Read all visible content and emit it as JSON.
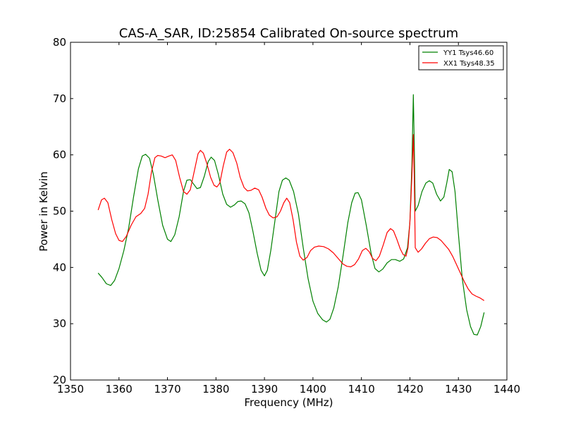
{
  "chart_data": {
    "type": "line",
    "title": "CAS-A_SAR, ID:25854 Calibrated On-source spectrum",
    "xlabel": "Frequency (MHz)",
    "ylabel": "Power in Kelvin",
    "xlim": [
      1350,
      1440
    ],
    "ylim": [
      20,
      80
    ],
    "xticks": [
      1350,
      1360,
      1370,
      1380,
      1390,
      1400,
      1410,
      1420,
      1430,
      1440
    ],
    "yticks": [
      20,
      30,
      40,
      50,
      60,
      70,
      80
    ],
    "grid": false,
    "legend_position": "top-right",
    "series": [
      {
        "name": "YY1 Tsys46.60",
        "color": "#008000",
        "points": [
          [
            1355.7,
            39.0
          ],
          [
            1356.5,
            38.2
          ],
          [
            1357.4,
            37.1
          ],
          [
            1358.3,
            36.8
          ],
          [
            1359.1,
            37.7
          ],
          [
            1360.0,
            39.8
          ],
          [
            1361.0,
            43.0
          ],
          [
            1362.0,
            47.0
          ],
          [
            1363.0,
            52.5
          ],
          [
            1364.0,
            57.5
          ],
          [
            1364.8,
            59.8
          ],
          [
            1365.5,
            60.1
          ],
          [
            1366.3,
            59.4
          ],
          [
            1367.1,
            56.5
          ],
          [
            1368.0,
            52.0
          ],
          [
            1369.0,
            47.5
          ],
          [
            1370.0,
            45.0
          ],
          [
            1370.7,
            44.6
          ],
          [
            1371.5,
            45.8
          ],
          [
            1372.4,
            49.0
          ],
          [
            1373.3,
            53.5
          ],
          [
            1374.0,
            55.5
          ],
          [
            1374.7,
            55.6
          ],
          [
            1375.4,
            54.8
          ],
          [
            1376.1,
            54.0
          ],
          [
            1376.8,
            54.2
          ],
          [
            1377.6,
            56.2
          ],
          [
            1378.4,
            58.8
          ],
          [
            1379.0,
            59.6
          ],
          [
            1379.7,
            59.0
          ],
          [
            1380.5,
            56.5
          ],
          [
            1381.4,
            53.0
          ],
          [
            1382.2,
            51.2
          ],
          [
            1383.0,
            50.7
          ],
          [
            1383.8,
            51.1
          ],
          [
            1384.5,
            51.7
          ],
          [
            1385.2,
            51.8
          ],
          [
            1386.0,
            51.3
          ],
          [
            1386.8,
            49.7
          ],
          [
            1387.6,
            46.5
          ],
          [
            1388.5,
            42.5
          ],
          [
            1389.3,
            39.5
          ],
          [
            1390.0,
            38.5
          ],
          [
            1390.6,
            39.5
          ],
          [
            1391.3,
            43.0
          ],
          [
            1392.2,
            48.5
          ],
          [
            1393.0,
            53.5
          ],
          [
            1393.7,
            55.5
          ],
          [
            1394.4,
            55.9
          ],
          [
            1395.1,
            55.5
          ],
          [
            1396.0,
            53.5
          ],
          [
            1397.0,
            49.5
          ],
          [
            1398.0,
            43.5
          ],
          [
            1399.0,
            38.0
          ],
          [
            1400.0,
            34.0
          ],
          [
            1401.0,
            31.8
          ],
          [
            1402.0,
            30.7
          ],
          [
            1402.8,
            30.3
          ],
          [
            1403.5,
            30.8
          ],
          [
            1404.3,
            32.8
          ],
          [
            1405.2,
            36.5
          ],
          [
            1406.2,
            42.0
          ],
          [
            1407.2,
            48.0
          ],
          [
            1408.0,
            51.5
          ],
          [
            1408.7,
            53.2
          ],
          [
            1409.3,
            53.3
          ],
          [
            1410.0,
            52.0
          ],
          [
            1411.0,
            47.5
          ],
          [
            1412.0,
            42.5
          ],
          [
            1412.8,
            39.8
          ],
          [
            1413.6,
            39.2
          ],
          [
            1414.4,
            39.7
          ],
          [
            1415.3,
            40.8
          ],
          [
            1416.2,
            41.4
          ],
          [
            1417.0,
            41.4
          ],
          [
            1417.9,
            41.1
          ],
          [
            1418.7,
            41.5
          ],
          [
            1419.5,
            43.5
          ],
          [
            1420.0,
            48.0
          ],
          [
            1420.4,
            58.0
          ],
          [
            1420.7,
            70.7
          ],
          [
            1420.9,
            62.0
          ],
          [
            1421.1,
            50.0
          ],
          [
            1421.7,
            51.0
          ],
          [
            1422.5,
            53.5
          ],
          [
            1423.3,
            55.0
          ],
          [
            1424.0,
            55.4
          ],
          [
            1424.7,
            55.0
          ],
          [
            1425.5,
            53.0
          ],
          [
            1426.3,
            51.8
          ],
          [
            1427.0,
            52.5
          ],
          [
            1427.6,
            55.0
          ],
          [
            1428.1,
            57.4
          ],
          [
            1428.7,
            57.0
          ],
          [
            1429.3,
            53.5
          ],
          [
            1430.0,
            46.0
          ],
          [
            1430.8,
            38.0
          ],
          [
            1431.7,
            32.5
          ],
          [
            1432.5,
            29.5
          ],
          [
            1433.2,
            28.1
          ],
          [
            1433.9,
            28.0
          ],
          [
            1434.6,
            29.5
          ],
          [
            1435.3,
            32.0
          ]
        ]
      },
      {
        "name": "XX1 Tsys48.35",
        "color": "#ff0000",
        "points": [
          [
            1355.7,
            50.2
          ],
          [
            1356.4,
            52.0
          ],
          [
            1357.0,
            52.3
          ],
          [
            1357.7,
            51.5
          ],
          [
            1358.5,
            48.5
          ],
          [
            1359.3,
            46.0
          ],
          [
            1360.0,
            44.8
          ],
          [
            1360.7,
            44.6
          ],
          [
            1361.5,
            45.5
          ],
          [
            1362.5,
            47.5
          ],
          [
            1363.5,
            49.0
          ],
          [
            1364.5,
            49.6
          ],
          [
            1365.3,
            50.5
          ],
          [
            1366.0,
            53.0
          ],
          [
            1366.7,
            57.0
          ],
          [
            1367.4,
            59.5
          ],
          [
            1368.0,
            59.9
          ],
          [
            1368.7,
            59.8
          ],
          [
            1369.5,
            59.5
          ],
          [
            1370.3,
            59.8
          ],
          [
            1371.0,
            60.0
          ],
          [
            1371.7,
            59.0
          ],
          [
            1372.5,
            56.0
          ],
          [
            1373.3,
            53.5
          ],
          [
            1374.0,
            53.0
          ],
          [
            1374.7,
            53.8
          ],
          [
            1375.5,
            57.0
          ],
          [
            1376.3,
            60.2
          ],
          [
            1376.8,
            60.8
          ],
          [
            1377.4,
            60.3
          ],
          [
            1378.1,
            58.5
          ],
          [
            1378.9,
            56.0
          ],
          [
            1379.6,
            54.6
          ],
          [
            1380.2,
            54.3
          ],
          [
            1380.8,
            55.0
          ],
          [
            1381.5,
            58.0
          ],
          [
            1382.2,
            60.5
          ],
          [
            1382.8,
            61.0
          ],
          [
            1383.5,
            60.4
          ],
          [
            1384.3,
            58.5
          ],
          [
            1385.0,
            56.0
          ],
          [
            1385.8,
            54.2
          ],
          [
            1386.5,
            53.6
          ],
          [
            1387.2,
            53.7
          ],
          [
            1388.0,
            54.1
          ],
          [
            1388.8,
            53.8
          ],
          [
            1389.5,
            52.5
          ],
          [
            1390.3,
            50.5
          ],
          [
            1391.0,
            49.3
          ],
          [
            1391.8,
            48.8
          ],
          [
            1392.6,
            49.0
          ],
          [
            1393.3,
            50.0
          ],
          [
            1394.0,
            51.5
          ],
          [
            1394.6,
            52.3
          ],
          [
            1395.2,
            51.5
          ],
          [
            1395.9,
            48.5
          ],
          [
            1396.6,
            44.5
          ],
          [
            1397.3,
            42.0
          ],
          [
            1398.0,
            41.3
          ],
          [
            1398.8,
            41.8
          ],
          [
            1399.5,
            43.0
          ],
          [
            1400.3,
            43.6
          ],
          [
            1401.2,
            43.8
          ],
          [
            1402.2,
            43.7
          ],
          [
            1403.2,
            43.3
          ],
          [
            1404.2,
            42.6
          ],
          [
            1405.2,
            41.6
          ],
          [
            1406.2,
            40.6
          ],
          [
            1407.0,
            40.2
          ],
          [
            1407.8,
            40.1
          ],
          [
            1408.6,
            40.5
          ],
          [
            1409.4,
            41.5
          ],
          [
            1410.2,
            43.0
          ],
          [
            1410.9,
            43.4
          ],
          [
            1411.6,
            42.8
          ],
          [
            1412.3,
            41.6
          ],
          [
            1413.0,
            41.2
          ],
          [
            1413.7,
            42.0
          ],
          [
            1414.5,
            44.0
          ],
          [
            1415.3,
            46.2
          ],
          [
            1416.0,
            46.9
          ],
          [
            1416.6,
            46.5
          ],
          [
            1417.3,
            45.0
          ],
          [
            1418.0,
            43.3
          ],
          [
            1418.6,
            42.3
          ],
          [
            1419.2,
            42.0
          ],
          [
            1419.6,
            43.5
          ],
          [
            1420.0,
            48.0
          ],
          [
            1420.4,
            56.0
          ],
          [
            1420.7,
            63.6
          ],
          [
            1420.9,
            56.0
          ],
          [
            1421.1,
            43.5
          ],
          [
            1421.7,
            42.7
          ],
          [
            1422.4,
            43.3
          ],
          [
            1423.2,
            44.3
          ],
          [
            1424.0,
            45.1
          ],
          [
            1424.8,
            45.4
          ],
          [
            1425.6,
            45.3
          ],
          [
            1426.4,
            44.8
          ],
          [
            1427.2,
            44.0
          ],
          [
            1428.0,
            43.2
          ],
          [
            1428.8,
            42.0
          ],
          [
            1429.6,
            40.5
          ],
          [
            1430.4,
            39.0
          ],
          [
            1431.2,
            37.5
          ],
          [
            1432.0,
            36.2
          ],
          [
            1432.8,
            35.3
          ],
          [
            1433.6,
            34.9
          ],
          [
            1434.4,
            34.6
          ],
          [
            1435.3,
            34.1
          ]
        ]
      }
    ]
  }
}
